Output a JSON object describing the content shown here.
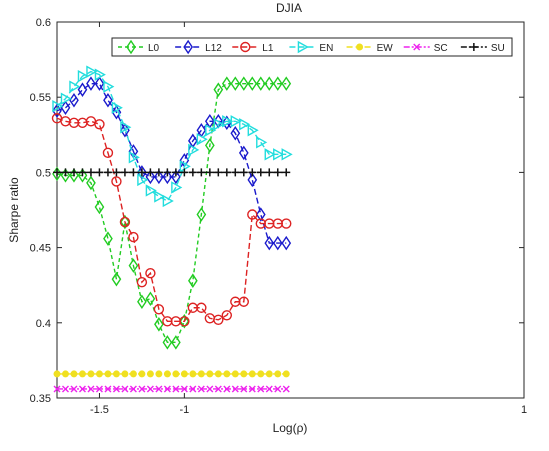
{
  "chart_data": {
    "type": "line",
    "title": "DJIA",
    "xlabel": "Log(ρ)",
    "ylabel": "Sharpe ratio",
    "xlim": [
      -1.75,
      1
    ],
    "ylim": [
      0.35,
      0.6
    ],
    "xticks": [
      -1.5,
      -1,
      1
    ],
    "xtick_labels": [
      "-1.5",
      "-1",
      "1"
    ],
    "yticks": [
      0.35,
      0.4,
      0.45,
      0.5,
      0.55,
      0.6
    ],
    "ytick_labels": [
      "0.35",
      "0.4",
      "0.45",
      "0.5",
      "0.55",
      "0.6"
    ],
    "grid": false,
    "legend_position": "top",
    "x": [
      -1.75,
      -1.7,
      -1.65,
      -1.6,
      -1.55,
      -1.5,
      -1.45,
      -1.4,
      -1.35,
      -1.3,
      -1.25,
      -1.2,
      -1.15,
      -1.1,
      -1.05,
      -1.0,
      -0.95,
      -0.9,
      -0.85,
      -0.8,
      -0.75,
      -0.7,
      -0.65,
      -0.6,
      -0.55,
      -0.5,
      -0.45,
      -0.4
    ],
    "series": [
      {
        "name": "L0",
        "color": "#22cc22",
        "marker": "diamond",
        "dash": "4,3",
        "values": [
          0.499,
          0.498,
          0.498,
          0.498,
          0.493,
          0.477,
          0.456,
          0.429,
          0.467,
          0.438,
          0.414,
          0.416,
          0.399,
          0.387,
          0.387,
          0.401,
          0.428,
          0.472,
          0.518,
          0.555,
          0.559,
          0.559,
          0.559,
          0.559,
          0.559,
          0.559,
          0.559,
          0.559
        ]
      },
      {
        "name": "L12",
        "color": "#1a1acc",
        "marker": "diamond",
        "dash": "6,3",
        "values": [
          0.541,
          0.543,
          0.548,
          0.555,
          0.559,
          0.559,
          0.548,
          0.54,
          0.528,
          0.514,
          0.5,
          0.497,
          0.497,
          0.497,
          0.497,
          0.508,
          0.521,
          0.528,
          0.534,
          0.534,
          0.533,
          0.526,
          0.513,
          0.495,
          0.472,
          0.453,
          0.453,
          0.453
        ]
      },
      {
        "name": "L1",
        "color": "#dd2222",
        "marker": "circle",
        "dash": "6,3",
        "values": [
          0.536,
          0.534,
          0.533,
          0.533,
          0.534,
          0.532,
          0.513,
          0.494,
          0.467,
          0.457,
          0.427,
          0.433,
          0.409,
          0.401,
          0.401,
          0.401,
          0.41,
          0.41,
          0.403,
          0.402,
          0.405,
          0.414,
          0.414,
          0.472,
          0.466,
          0.466,
          0.466,
          0.466
        ]
      },
      {
        "name": "EN",
        "color": "#22dddd",
        "marker": "triangle-right",
        "dash": "6,3",
        "values": [
          0.544,
          0.549,
          0.557,
          0.564,
          0.567,
          0.565,
          0.557,
          0.543,
          0.53,
          0.51,
          0.495,
          0.488,
          0.484,
          0.481,
          0.49,
          0.504,
          0.515,
          0.522,
          0.528,
          0.532,
          0.534,
          0.534,
          0.532,
          0.528,
          0.52,
          0.512,
          0.512,
          0.512
        ]
      },
      {
        "name": "EW",
        "color": "#f0e020",
        "marker": "circle-filled",
        "dash": "6,3",
        "values": [
          0.366,
          0.366,
          0.366,
          0.366,
          0.366,
          0.366,
          0.366,
          0.366,
          0.366,
          0.366,
          0.366,
          0.366,
          0.366,
          0.366,
          0.366,
          0.366,
          0.366,
          0.366,
          0.366,
          0.366,
          0.366,
          0.366,
          0.366,
          0.366,
          0.366,
          0.366,
          0.366,
          0.366
        ]
      },
      {
        "name": "SC",
        "color": "#ee22ee",
        "marker": "x",
        "dash": "6,2,2,2",
        "values": [
          0.356,
          0.356,
          0.356,
          0.356,
          0.356,
          0.356,
          0.356,
          0.356,
          0.356,
          0.356,
          0.356,
          0.356,
          0.356,
          0.356,
          0.356,
          0.356,
          0.356,
          0.356,
          0.356,
          0.356,
          0.356,
          0.356,
          0.356,
          0.356,
          0.356,
          0.356,
          0.356,
          0.356
        ]
      },
      {
        "name": "SU",
        "color": "#111111",
        "marker": "plus",
        "dash": "6,2,2,2",
        "values": [
          0.5,
          0.5,
          0.5,
          0.5,
          0.5,
          0.5,
          0.5,
          0.5,
          0.5,
          0.5,
          0.5,
          0.5,
          0.5,
          0.5,
          0.5,
          0.5,
          0.5,
          0.5,
          0.5,
          0.5,
          0.5,
          0.5,
          0.5,
          0.5,
          0.5,
          0.5,
          0.5,
          0.5
        ]
      }
    ]
  }
}
